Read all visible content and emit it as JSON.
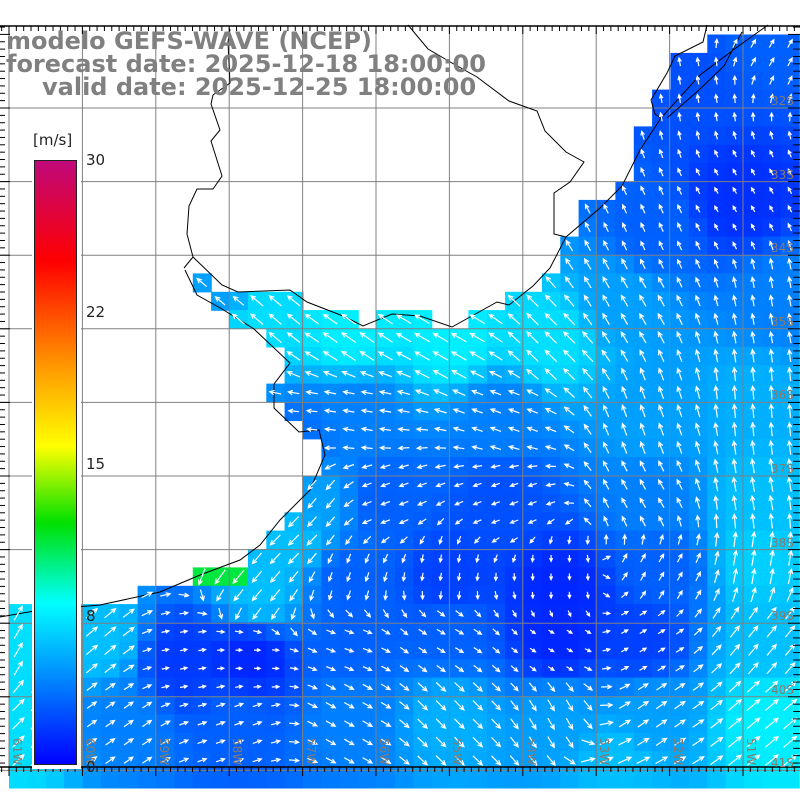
{
  "title": {
    "model": "modelo GEFS-WAVE (NCEP)",
    "forecast": "forecast date: 2025-12-18 18:00:00",
    "valid": "valid date: 2025-12-25 18:00:00"
  },
  "colorbar": {
    "unit": "[m/s]",
    "ticks": [
      "30",
      "22",
      "15",
      "8",
      "0"
    ],
    "range": [
      0,
      30
    ],
    "stops": [
      {
        "v": 0,
        "c": "#0000ff"
      },
      {
        "v": 4,
        "c": "#0080ff"
      },
      {
        "v": 8,
        "c": "#00ffff"
      },
      {
        "v": 12,
        "c": "#00e000"
      },
      {
        "v": 15.8,
        "c": "#ffff00"
      },
      {
        "v": 19.5,
        "c": "#ffa000"
      },
      {
        "v": 25,
        "c": "#ff0000"
      },
      {
        "v": 30,
        "c": "#c0087a"
      }
    ]
  },
  "lat_labels": [
    "32S",
    "33S",
    "34S",
    "35S",
    "36S",
    "37S",
    "38S",
    "39S",
    "40S",
    "41S"
  ],
  "lon_labels": [
    "61W",
    "60W",
    "59W",
    "58W",
    "57W",
    "56W",
    "55W",
    "54W",
    "53W",
    "52W",
    "51W"
  ],
  "colors": {
    "grid": "#808080",
    "coast": "#000000",
    "arrow": "#ffffff",
    "land": "#ffffff"
  }
}
